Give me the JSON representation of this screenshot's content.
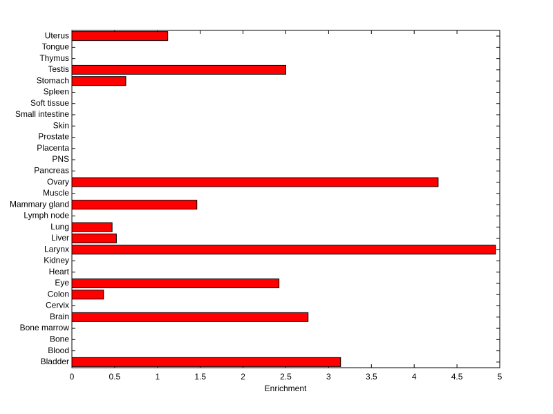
{
  "chart_data": {
    "type": "barh",
    "categories": [
      "Bladder",
      "Blood",
      "Bone",
      "Bone marrow",
      "Brain",
      "Cervix",
      "Colon",
      "Eye",
      "Heart",
      "Kidney",
      "Larynx",
      "Liver",
      "Lung",
      "Lymph node",
      "Mammary gland",
      "Muscle",
      "Ovary",
      "Pancreas",
      "PNS",
      "Placenta",
      "Prostate",
      "Skin",
      "Small intestine",
      "Soft tissue",
      "Spleen",
      "Stomach",
      "Testis",
      "Thymus",
      "Tongue",
      "Uterus"
    ],
    "values": [
      3.14,
      0,
      0,
      0,
      2.76,
      0,
      0.37,
      2.42,
      0,
      0,
      4.95,
      0.52,
      0.47,
      0,
      1.46,
      0,
      4.28,
      0,
      0,
      0,
      0,
      0,
      0,
      0,
      0,
      0.63,
      2.5,
      0,
      0,
      1.12
    ],
    "color": "#ff0000",
    "xlabel": "Enrichment",
    "xlim": [
      0,
      5
    ],
    "xticks": [
      0,
      0.5,
      1,
      1.5,
      2,
      2.5,
      3,
      3.5,
      4,
      4.5,
      5
    ]
  }
}
